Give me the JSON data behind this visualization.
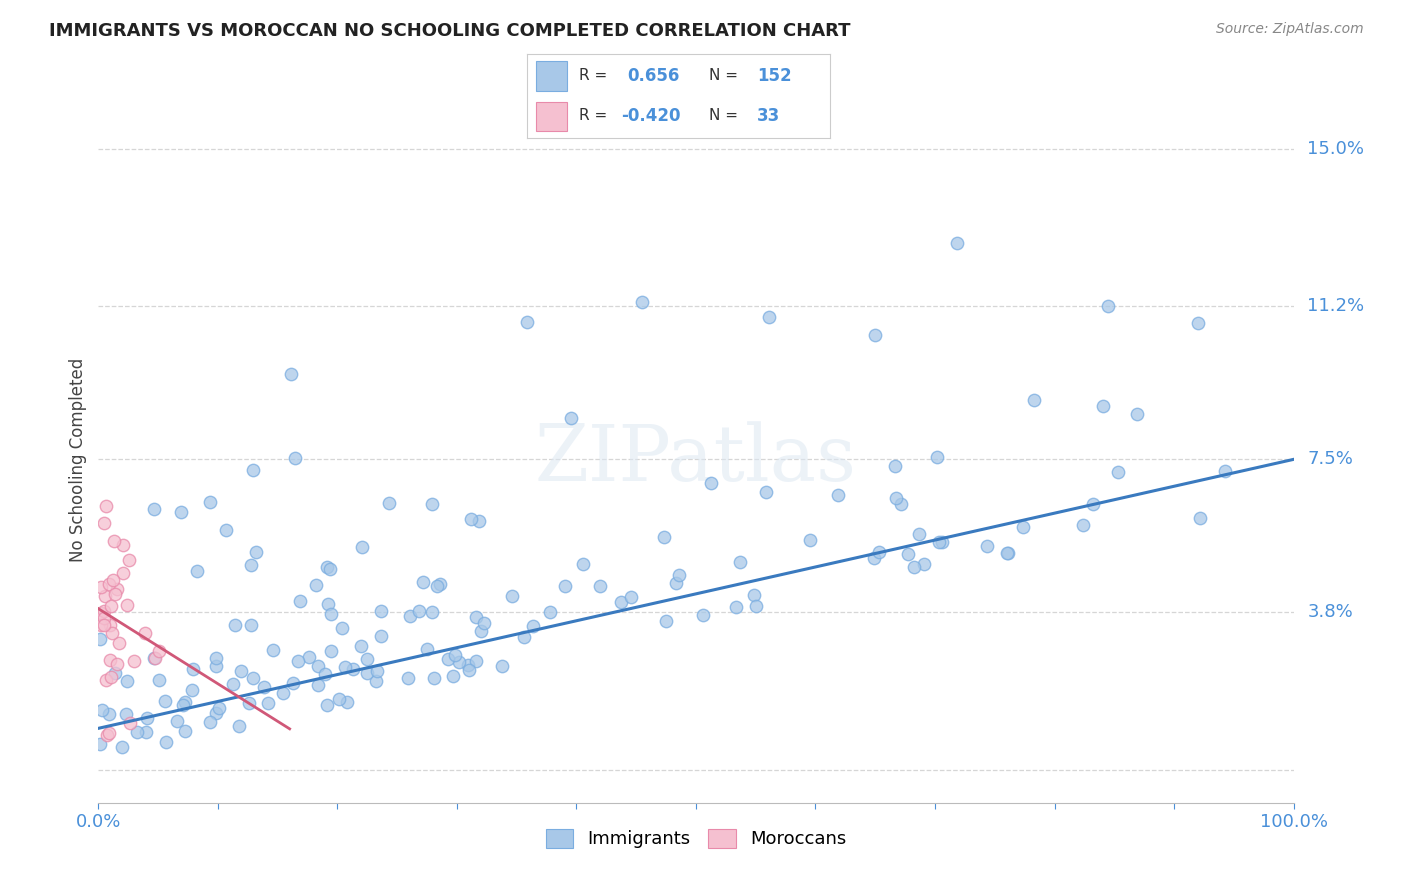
{
  "title": "IMMIGRANTS VS MOROCCAN NO SCHOOLING COMPLETED CORRELATION CHART",
  "source": "Source: ZipAtlas.com",
  "ylabel": "No Schooling Completed",
  "right_yticks": [
    0.0,
    0.038,
    0.075,
    0.112,
    0.15
  ],
  "right_ytick_labels": [
    "",
    "3.8%",
    "7.5%",
    "11.2%",
    "15.0%"
  ],
  "watermark": "ZIPatlas",
  "legend_bottom": [
    "Immigrants",
    "Moroccans"
  ],
  "immigrant_color": "#a8c8e8",
  "immigrant_edge_color": "#7aade0",
  "moroccan_color": "#f5c0d0",
  "moroccan_edge_color": "#e88aaa",
  "immigrant_line_color": "#3a7abf",
  "moroccan_line_color": "#d05878",
  "background_color": "#ffffff",
  "grid_color": "#cccccc",
  "xmin": 0.0,
  "xmax": 1.0,
  "ymin": -0.008,
  "ymax": 0.158,
  "legend_blue_color": "#a8c8e8",
  "legend_pink_color": "#f5c0d0",
  "legend_text_dark": "#333333",
  "legend_text_blue": "#4a90d9"
}
